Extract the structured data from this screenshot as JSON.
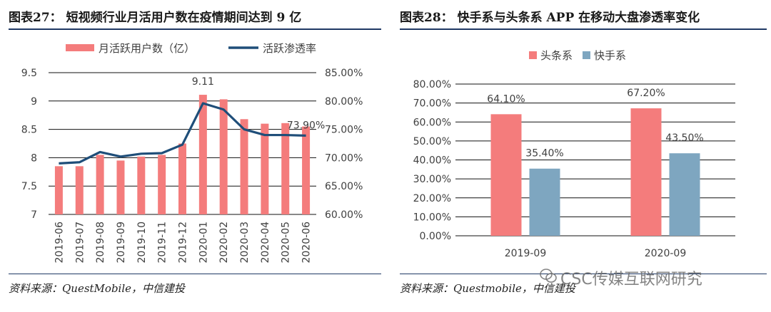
{
  "figure_left": {
    "title": "图表27： 短视频行业月活用户数在疫情期间达到 9 亿",
    "source": "资料来源：QuestMobile，中信建投"
  },
  "figure_right": {
    "title": "图表28： 快手系与头条系 APP 在移动大盘渗透率变化",
    "source": "资料来源：Questmobile，中信建投"
  },
  "watermark": "CSC传媒互联网研究",
  "colors": {
    "bar_red": "#f47c7c",
    "line_navy": "#1f4e79",
    "bar_blue": "#7ea6c0",
    "rule": "#1f3864"
  },
  "chart_data": [
    {
      "type": "bar+line",
      "categories": [
        "2019-06",
        "2019-07",
        "2019-08",
        "2019-09",
        "2019-10",
        "2019-11",
        "2019-12",
        "2020-01",
        "2020-02",
        "2020-03",
        "2020-04",
        "2020-05",
        "2020-06"
      ],
      "series": [
        {
          "name": "月活跃用户数（亿）",
          "type": "bar",
          "axis": "left",
          "values": [
            7.85,
            7.85,
            8.05,
            7.95,
            8.02,
            8.05,
            8.25,
            9.11,
            9.03,
            8.68,
            8.6,
            8.61,
            8.55
          ]
        },
        {
          "name": "活跃渗透率",
          "type": "line",
          "axis": "right",
          "values": [
            69.0,
            69.2,
            71.0,
            70.2,
            70.7,
            70.8,
            72.3,
            79.6,
            78.5,
            75.0,
            74.0,
            74.0,
            73.9
          ]
        }
      ],
      "y_left": {
        "min": 7,
        "max": 9.5,
        "ticks": [
          "7",
          "7.5",
          "8",
          "8.5",
          "9",
          "9.5"
        ],
        "tick_values": [
          7,
          7.5,
          8,
          8.5,
          9,
          9.5
        ]
      },
      "y_right": {
        "min": 60,
        "max": 85,
        "ticks": [
          "60.00%",
          "65.00%",
          "70.00%",
          "75.00%",
          "80.00%",
          "85.00%"
        ],
        "tick_values": [
          60,
          65,
          70,
          75,
          80,
          85
        ]
      },
      "annotations": [
        {
          "text": "9.11",
          "series": 0,
          "index": 7
        },
        {
          "text": "73.90%",
          "series": 1,
          "index": 12
        }
      ],
      "legend": [
        "月活跃用户数（亿）",
        "活跃渗透率"
      ],
      "legend_position": "top"
    },
    {
      "type": "bar",
      "categories": [
        "2019-09",
        "2020-09"
      ],
      "series": [
        {
          "name": "头条系",
          "values": [
            64.1,
            67.2
          ],
          "labels": [
            "64.10%",
            "67.20%"
          ]
        },
        {
          "name": "快手系",
          "values": [
            35.4,
            43.5
          ],
          "labels": [
            "35.40%",
            "43.50%"
          ]
        }
      ],
      "y": {
        "min": 0,
        "max": 80,
        "ticks": [
          "0.00%",
          "10.00%",
          "20.00%",
          "30.00%",
          "40.00%",
          "50.00%",
          "60.00%",
          "70.00%",
          "80.00%"
        ],
        "tick_values": [
          0,
          10,
          20,
          30,
          40,
          50,
          60,
          70,
          80
        ]
      },
      "legend": [
        "头条系",
        "快手系"
      ],
      "legend_position": "top-left"
    }
  ]
}
